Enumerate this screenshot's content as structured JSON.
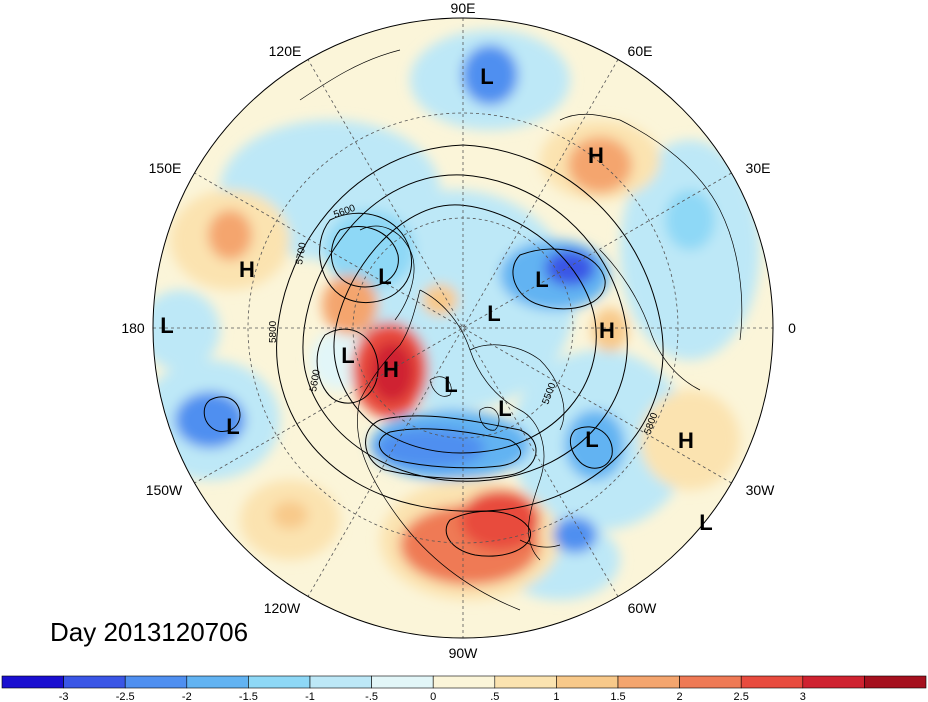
{
  "title": "Day 2013120706",
  "longitude_labels": [
    "90E",
    "60E",
    "30E",
    "0",
    "30W",
    "60W",
    "90W",
    "120W",
    "150W",
    "180",
    "150E",
    "120E"
  ],
  "pressure_centers": [
    {
      "type": "L"
    },
    {
      "type": "H"
    },
    {
      "type": "L"
    },
    {
      "type": "L"
    },
    {
      "type": "L"
    },
    {
      "type": "H"
    },
    {
      "type": "L"
    },
    {
      "type": "H"
    },
    {
      "type": "L"
    },
    {
      "type": "L"
    },
    {
      "type": "L"
    },
    {
      "type": "H"
    },
    {
      "type": "L"
    },
    {
      "type": "H"
    },
    {
      "type": "L"
    },
    {
      "type": "L"
    }
  ],
  "contour_labels": [
    "5600",
    "5700",
    "5800",
    "5600",
    "5500",
    "5800"
  ],
  "colorbar": {
    "colors": [
      "#1a0fd0",
      "#3a56e6",
      "#4f8ff0",
      "#62b3f2",
      "#8ed8f6",
      "#bde8f7",
      "#e2f6f8",
      "#fbf5d9",
      "#fbe3b0",
      "#f8c98a",
      "#f4a56e",
      "#ef7a55",
      "#e84b3e",
      "#cf2230",
      "#a5101e"
    ],
    "tick_labels": [
      "-3",
      "-2.5",
      "-2",
      "-1.5",
      "-1",
      "-.5",
      "0",
      ".5",
      "1",
      "1.5",
      "2",
      "2.5",
      "3"
    ]
  }
}
